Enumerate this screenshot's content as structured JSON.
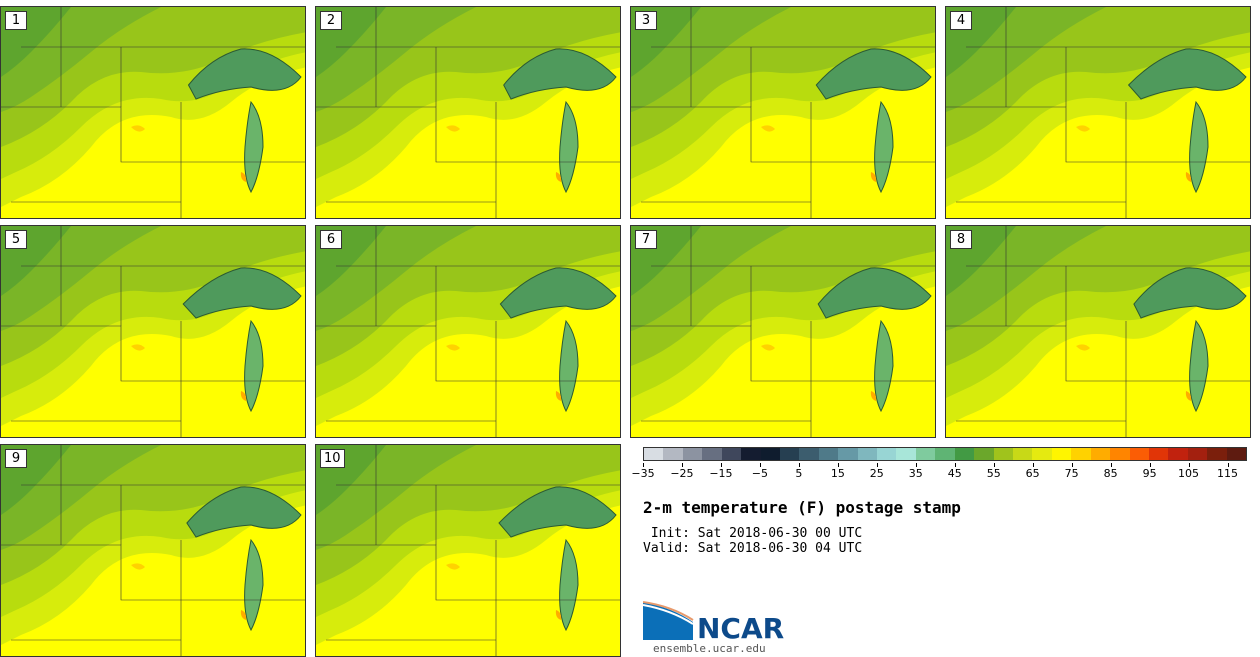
{
  "panels": [
    {
      "label": "1"
    },
    {
      "label": "2"
    },
    {
      "label": "3"
    },
    {
      "label": "4"
    },
    {
      "label": "5"
    },
    {
      "label": "6"
    },
    {
      "label": "7"
    },
    {
      "label": "8"
    },
    {
      "label": "9"
    },
    {
      "label": "10"
    }
  ],
  "colorbar": {
    "colors": [
      "#d8dde3",
      "#b3b8c2",
      "#8c93a1",
      "#676f81",
      "#3f475c",
      "#141c30",
      "#0f1c2e",
      "#263f51",
      "#3c5d6e",
      "#4f7a89",
      "#6699a6",
      "#7fb7be",
      "#98d5d4",
      "#a8e6d9",
      "#7fcb9e",
      "#5fb474",
      "#429a44",
      "#6ba72b",
      "#a0c31c",
      "#c8d917",
      "#e5ea10",
      "#fff500",
      "#ffd200",
      "#ffac00",
      "#ff8500",
      "#fb5d05",
      "#e13507",
      "#c1220e",
      "#a3200f",
      "#7b1f0c",
      "#5e1b10"
    ],
    "tick_labels": [
      "−35",
      "−25",
      "−15",
      "−5",
      "5",
      "15",
      "25",
      "35",
      "45",
      "55",
      "65",
      "75",
      "85",
      "95",
      "105",
      "115"
    ]
  },
  "title": "2-m temperature (F) postage stamp",
  "init": " Init: Sat 2018-06-30 00 UTC",
  "valid": "Valid: Sat 2018-06-30 04 UTC",
  "logo_text": "NCAR",
  "site": "ensemble.ucar.edu"
}
